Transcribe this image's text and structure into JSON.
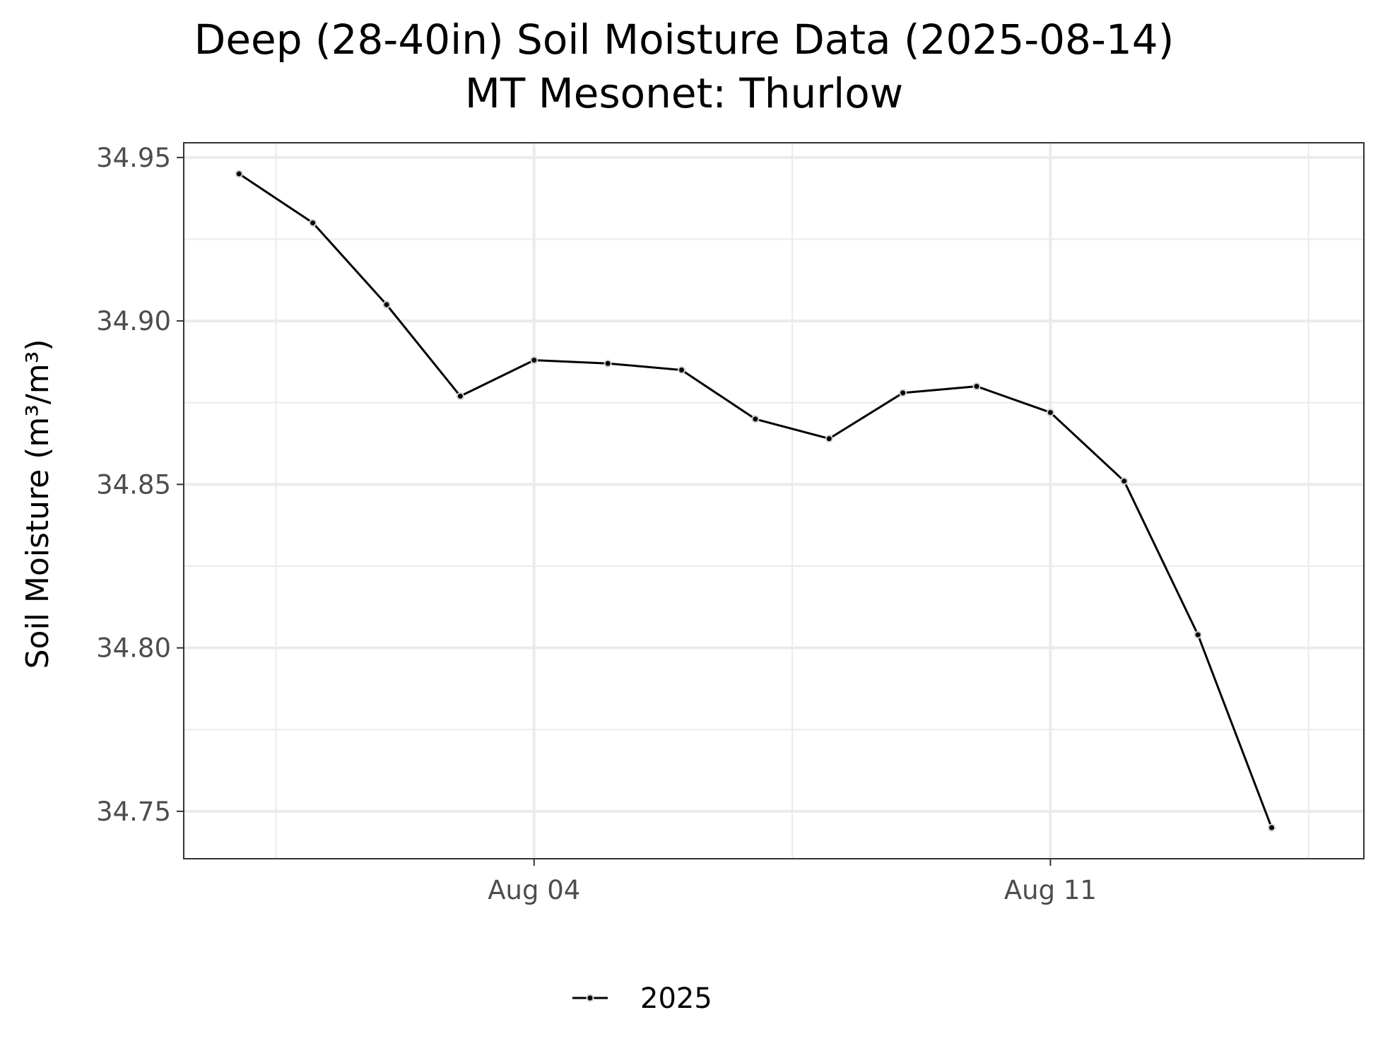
{
  "chart_data": {
    "type": "line",
    "title": "Deep (28-40in) Soil Moisture Data (2025-08-14)",
    "subtitle": "MT Mesonet: Thurlow",
    "xlabel": "",
    "ylabel": "Soil Moisture (m³/m³)",
    "x_type": "date",
    "xlim": [
      "2025-07-30T06:00",
      "2025-08-15T06:00"
    ],
    "ylim": [
      34.7355,
      34.9545
    ],
    "x_ticks": [
      {
        "value": "2025-08-04",
        "label": "Aug 04"
      },
      {
        "value": "2025-08-11",
        "label": "Aug 11"
      }
    ],
    "x_minor_ticks": [
      "2025-07-31T12:00",
      "2025-08-07T12:00",
      "2025-08-14T12:00"
    ],
    "y_ticks": [
      {
        "value": 34.75,
        "label": "34.75"
      },
      {
        "value": 34.8,
        "label": "34.80"
      },
      {
        "value": 34.85,
        "label": "34.85"
      },
      {
        "value": 34.9,
        "label": "34.90"
      },
      {
        "value": 34.95,
        "label": "34.95"
      }
    ],
    "y_minor_ticks": [
      34.775,
      34.825,
      34.875,
      34.925
    ],
    "grid": true,
    "legend_position": "bottom",
    "series": [
      {
        "name": "2025",
        "color": "#000000",
        "points": [
          {
            "x": "2025-07-31",
            "y": 34.945
          },
          {
            "x": "2025-08-01",
            "y": 34.93
          },
          {
            "x": "2025-08-02",
            "y": 34.905
          },
          {
            "x": "2025-08-03",
            "y": 34.877
          },
          {
            "x": "2025-08-04",
            "y": 34.888
          },
          {
            "x": "2025-08-05",
            "y": 34.887
          },
          {
            "x": "2025-08-06",
            "y": 34.885
          },
          {
            "x": "2025-08-07",
            "y": 34.87
          },
          {
            "x": "2025-08-08",
            "y": 34.864
          },
          {
            "x": "2025-08-09",
            "y": 34.878
          },
          {
            "x": "2025-08-10",
            "y": 34.88
          },
          {
            "x": "2025-08-11",
            "y": 34.872
          },
          {
            "x": "2025-08-12",
            "y": 34.851
          },
          {
            "x": "2025-08-13",
            "y": 34.804
          },
          {
            "x": "2025-08-14",
            "y": 34.745
          }
        ]
      }
    ]
  }
}
